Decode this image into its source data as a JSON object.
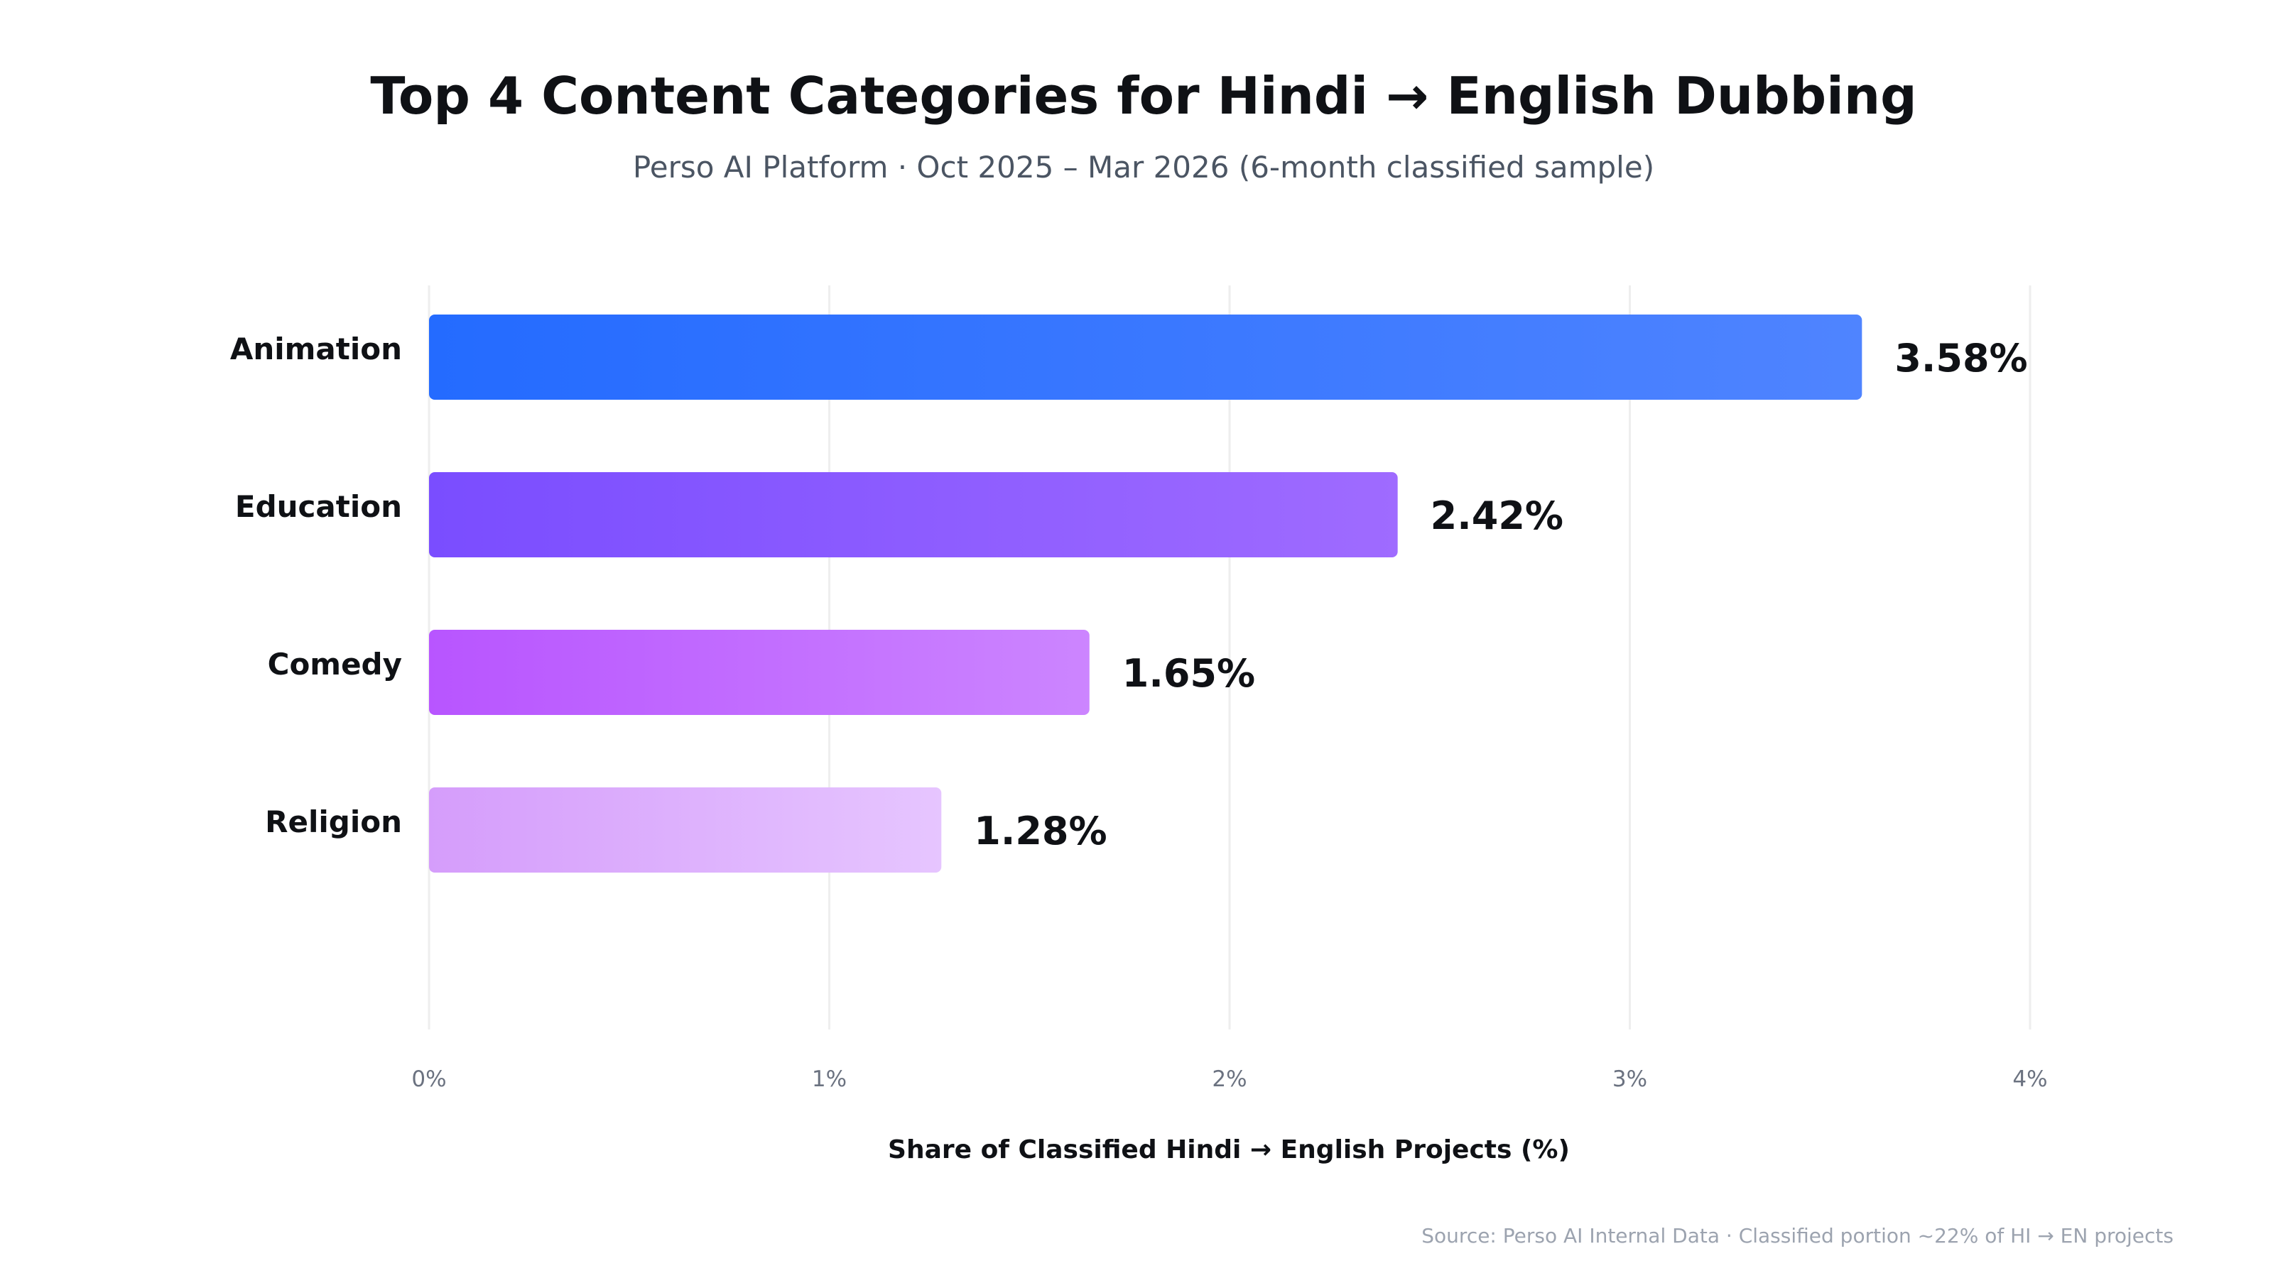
{
  "chart_data": {
    "type": "bar",
    "orientation": "horizontal",
    "title": "Top 4 Content Categories for Hindi → English Dubbing",
    "subtitle": "Perso AI Platform · Oct 2025 – Mar 2026 (6-month classified sample)",
    "categories": [
      "Animation",
      "Education",
      "Comedy",
      "Religion"
    ],
    "values": [
      3.58,
      2.42,
      1.65,
      1.28
    ],
    "value_labels": [
      "3.58%",
      "2.42%",
      "1.65%",
      "1.28%"
    ],
    "xlabel": "Share of Classified Hindi → English Projects (%)",
    "ylabel": "",
    "xlim": [
      0,
      4
    ],
    "xticks": [
      0,
      1,
      2,
      3,
      4
    ],
    "xtick_labels": [
      "0%",
      "1%",
      "2%",
      "3%",
      "4%"
    ],
    "grid": true,
    "legend": "none",
    "source": "Source: Perso AI Internal Data · Classified portion ~22% of HI → EN projects",
    "bar_colors": [
      [
        "#246bff",
        "#4f84ff"
      ],
      [
        "#7a4dff",
        "#9f6bff"
      ],
      [
        "#b855ff",
        "#cc85ff"
      ],
      [
        "#d59dfb",
        "#e6c5ff"
      ]
    ]
  }
}
